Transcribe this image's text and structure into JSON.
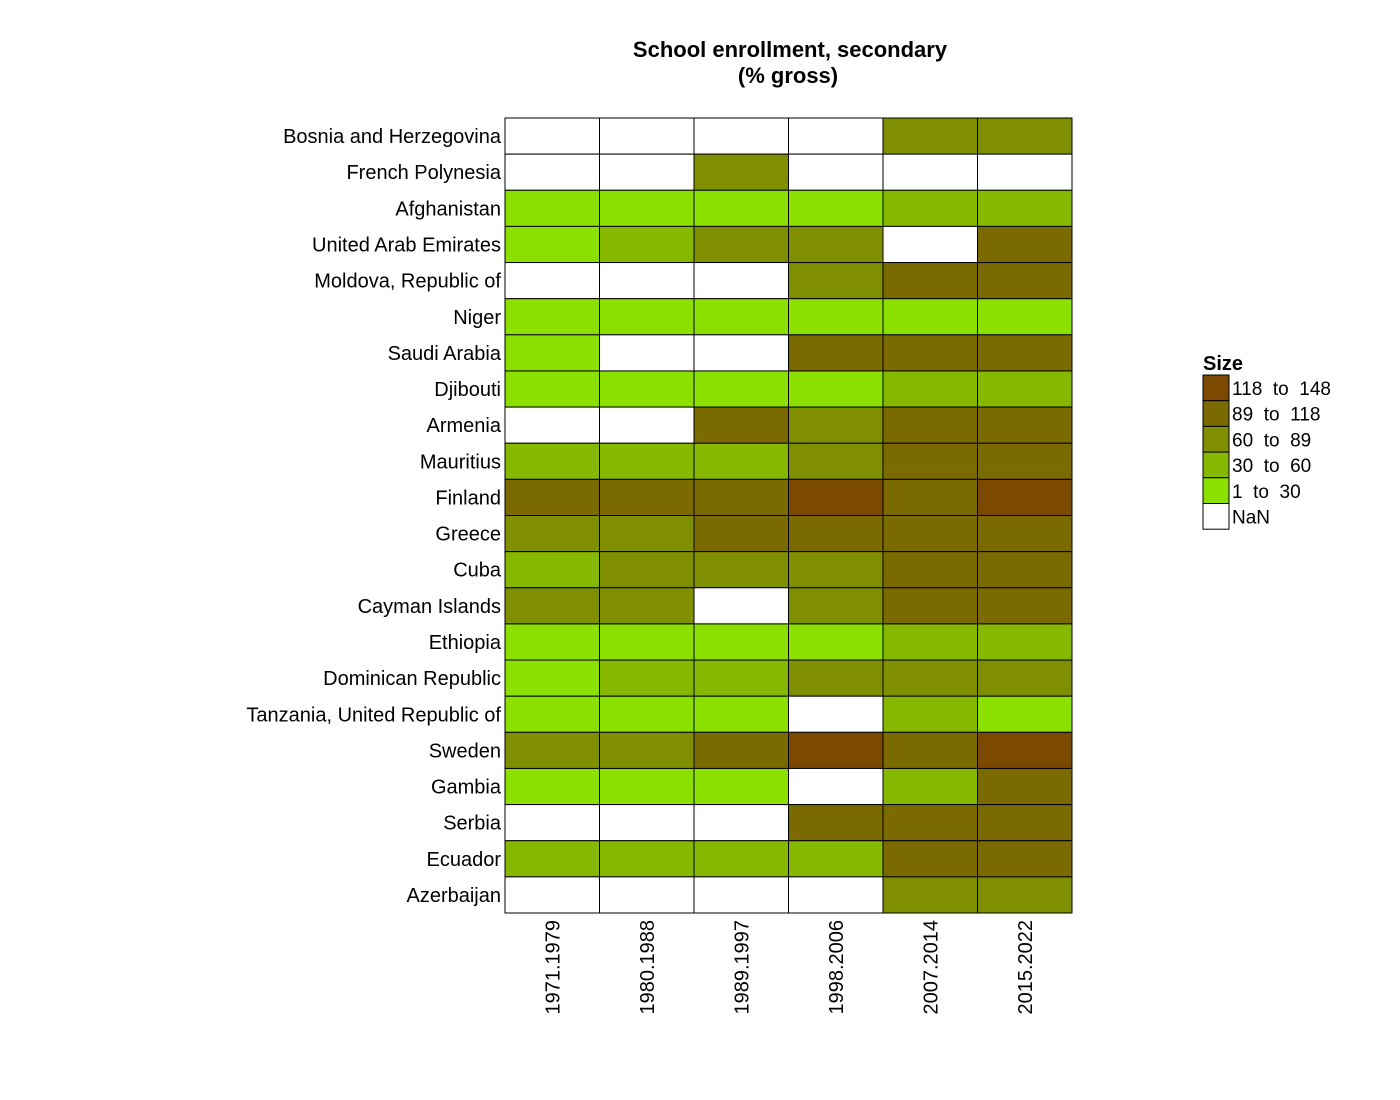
{
  "chart_data": {
    "type": "heatmap",
    "title": "School enrollment, secondary",
    "subtitle": "(% gross)",
    "rows": [
      "Bosnia and Herzegovina",
      "French Polynesia",
      "Afghanistan",
      "United Arab Emirates",
      "Moldova, Republic of",
      "Niger",
      "Saudi Arabia",
      "Djibouti",
      "Armenia",
      "Mauritius",
      "Finland",
      "Greece",
      "Cuba",
      "Cayman Islands",
      "Ethiopia",
      "Dominican Republic",
      "Tanzania, United Republic of",
      "Sweden",
      "Gambia",
      "Serbia",
      "Ecuador",
      "Azerbaijan"
    ],
    "columns": [
      "1971.1979",
      "1980.1988",
      "1989.1997",
      "1998.2006",
      "2007.2014",
      "2015.2022"
    ],
    "bins": [
      {
        "label": "118  to  148",
        "color": "#7B4A00"
      },
      {
        "label": "89  to  118",
        "color": "#7A6A00"
      },
      {
        "label": "60  to  89",
        "color": "#7F8F00"
      },
      {
        "label": "30  to  60",
        "color": "#86B800"
      },
      {
        "label": "1  to  30",
        "color": "#8CE000"
      },
      {
        "label": "NaN",
        "color": "#FFFFFF"
      }
    ],
    "cells": [
      [
        5,
        5,
        5,
        5,
        2,
        2
      ],
      [
        5,
        5,
        2,
        5,
        5,
        5
      ],
      [
        4,
        4,
        4,
        4,
        3,
        3
      ],
      [
        4,
        3,
        2,
        2,
        5,
        1
      ],
      [
        5,
        5,
        5,
        2,
        1,
        1
      ],
      [
        4,
        4,
        4,
        4,
        4,
        4
      ],
      [
        4,
        5,
        5,
        1,
        1,
        1
      ],
      [
        4,
        4,
        4,
        4,
        3,
        3
      ],
      [
        5,
        5,
        1,
        2,
        1,
        1
      ],
      [
        3,
        3,
        3,
        2,
        1,
        1
      ],
      [
        1,
        1,
        1,
        0,
        1,
        0
      ],
      [
        2,
        2,
        1,
        1,
        1,
        1
      ],
      [
        3,
        2,
        2,
        2,
        1,
        1
      ],
      [
        2,
        2,
        5,
        2,
        1,
        1
      ],
      [
        4,
        4,
        4,
        4,
        3,
        3
      ],
      [
        4,
        3,
        3,
        2,
        2,
        2
      ],
      [
        4,
        4,
        4,
        5,
        3,
        4
      ],
      [
        2,
        2,
        1,
        0,
        1,
        0
      ],
      [
        4,
        4,
        4,
        5,
        3,
        1
      ],
      [
        5,
        5,
        5,
        1,
        1,
        1
      ],
      [
        3,
        3,
        3,
        3,
        1,
        1
      ],
      [
        5,
        5,
        5,
        5,
        2,
        2
      ]
    ],
    "legend": {
      "title": "Size",
      "position": "right"
    },
    "grid": false
  }
}
